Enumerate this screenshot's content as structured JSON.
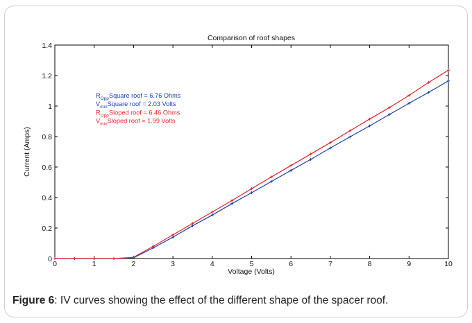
{
  "chart_data": {
    "type": "line",
    "title": "Comparison of roof shapes",
    "xlabel": "Voltage (Volts)",
    "ylabel": "Current (Amps)",
    "xlim": [
      0,
      10
    ],
    "ylim": [
      0,
      1.4
    ],
    "xticks": [
      0,
      1,
      2,
      3,
      4,
      5,
      6,
      7,
      8,
      9,
      10
    ],
    "yticks": [
      0,
      0.2,
      0.4,
      0.6,
      0.8,
      1,
      1.2,
      1.4
    ],
    "xtick_labels": [
      "0",
      "1",
      "2",
      "3",
      "4",
      "5",
      "6",
      "7",
      "8",
      "9",
      "10"
    ],
    "ytick_labels": [
      "0",
      "0.2",
      "0.4",
      "0.6",
      "0.8",
      "1",
      "1.2",
      "1.4"
    ],
    "grid": false,
    "series": [
      {
        "color": "#1f3fa8",
        "x": [
          0,
          0.5,
          1,
          1.5,
          2,
          2.5,
          3,
          3.5,
          4,
          4.5,
          5,
          5.5,
          6,
          6.5,
          7,
          7.5,
          8,
          8.5,
          9,
          9.5,
          10
        ],
        "y": [
          0,
          0,
          0,
          0,
          0.005,
          0.07,
          0.14,
          0.215,
          0.285,
          0.36,
          0.432,
          0.505,
          0.578,
          0.65,
          0.725,
          0.798,
          0.87,
          0.945,
          1.018,
          1.09,
          1.165
        ]
      },
      {
        "color": "#e8202a",
        "x": [
          0,
          0.5,
          1,
          1.5,
          2,
          2.5,
          3,
          3.5,
          4,
          4.5,
          5,
          5.5,
          6,
          6.5,
          7,
          7.5,
          8,
          8.5,
          9,
          9.5,
          10
        ],
        "y": [
          0,
          0,
          0,
          0,
          0.008,
          0.08,
          0.155,
          0.23,
          0.305,
          0.38,
          0.458,
          0.535,
          0.61,
          0.685,
          0.76,
          0.838,
          0.915,
          0.99,
          1.07,
          1.155,
          1.235
        ]
      }
    ],
    "annotations": [
      {
        "main": "R",
        "sub": "Opp",
        "rest": "Square roof = 6.76  Ohms",
        "color": "#1f3fa8"
      },
      {
        "main": "V",
        "sub": "min",
        "rest": "Square roof = 2.03  Volts",
        "color": "#1f3fa8"
      },
      {
        "main": "R",
        "sub": "Opp",
        "rest": "Sloped roof = 6.46  Ohms",
        "color": "#e8202a"
      },
      {
        "main": "V",
        "sub": "min",
        "rest": "Sloped roof = 1.99  Volts",
        "color": "#e8202a"
      }
    ]
  },
  "caption": {
    "label": "Figure 6",
    "text": ": IV curves showing the effect of the different shape of the spacer roof."
  }
}
